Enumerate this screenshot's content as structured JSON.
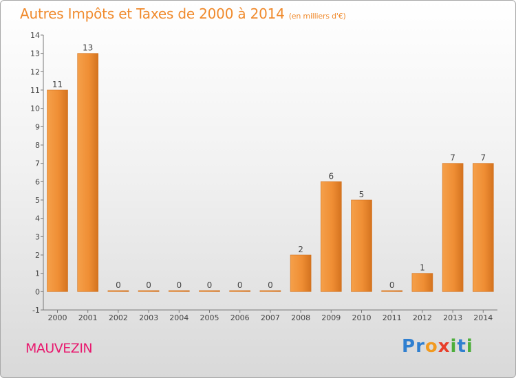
{
  "header": {
    "title": "Autres Impôts et Taxes de 2000 à 2014",
    "unit": "(en milliers d'€)"
  },
  "footer": {
    "place": "MAUVEZIN",
    "logo_letters": [
      {
        "ch": "P",
        "color": "#2f7fd0"
      },
      {
        "ch": "r",
        "color": "#2f7fd0"
      },
      {
        "ch": "o",
        "color": "#f29a1f"
      },
      {
        "ch": "x",
        "color": "#e83e2a"
      },
      {
        "ch": "i",
        "color": "#4cae3b"
      },
      {
        "ch": "t",
        "color": "#2f7fd0"
      },
      {
        "ch": "i",
        "color": "#4cae3b"
      }
    ]
  },
  "chart_data": {
    "type": "bar",
    "title": "Autres Impôts et Taxes de 2000 à 2014",
    "subtitle": "(en milliers d'€)",
    "categories": [
      "2000",
      "2001",
      "2002",
      "2003",
      "2004",
      "2005",
      "2006",
      "2007",
      "2008",
      "2009",
      "2010",
      "2011",
      "2012",
      "2013",
      "2014"
    ],
    "values": [
      11,
      13,
      0,
      0,
      0,
      0,
      0,
      0,
      2,
      6,
      5,
      0,
      1,
      7,
      7
    ],
    "y_ticks": [
      "-1",
      "0",
      "1",
      "2",
      "3",
      "4",
      "5",
      "6",
      "7",
      "8",
      "9",
      "10",
      "11",
      "12",
      "13",
      "14"
    ],
    "ylim": [
      -1,
      14
    ],
    "grid": false,
    "bar_color": "#f08a2c",
    "bar_color_dark": "#d2721e"
  }
}
